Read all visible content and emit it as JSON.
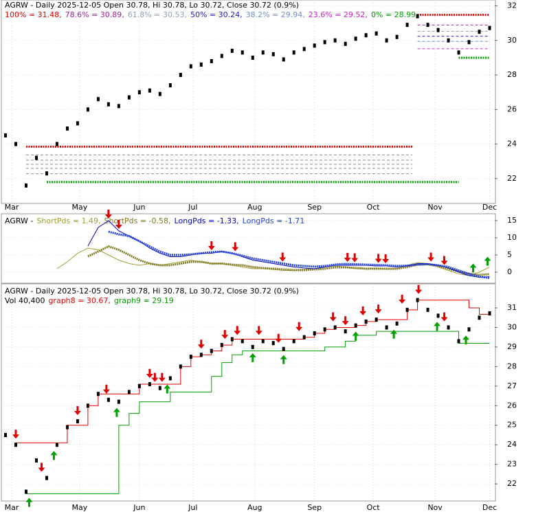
{
  "chart_data": [
    {
      "type": "price",
      "title": "AGRW - Daily 2025-12-05 Open 30.78, Hi 30.78, Lo 30.72, Close 30.72 (0.9%)",
      "xlim": [
        -0.2,
        47.5
      ],
      "xticks": [
        {
          "value": 0.6,
          "label": "Mar"
        },
        {
          "value": 7.2,
          "label": "May"
        },
        {
          "value": 13,
          "label": "Jun"
        },
        {
          "value": 18.2,
          "label": "Jul"
        },
        {
          "value": 24.2,
          "label": "Aug"
        },
        {
          "value": 30,
          "label": "Sep"
        },
        {
          "value": 35.7,
          "label": "Oct"
        },
        {
          "value": 41.7,
          "label": "Nov"
        },
        {
          "value": 47,
          "label": "Dec"
        }
      ],
      "ylim": [
        20.8,
        32.26
      ],
      "yticks": [
        22,
        24,
        26,
        28,
        30,
        32
      ],
      "grid": true,
      "color": "#000000",
      "values": [
        24.5,
        24.0,
        21.6,
        23.2,
        22.3,
        24.0,
        24.9,
        25.2,
        26.0,
        26.6,
        26.3,
        26.2,
        26.7,
        27.0,
        27.1,
        26.9,
        27.4,
        28.0,
        28.5,
        28.6,
        28.8,
        29.1,
        29.4,
        29.3,
        29.0,
        29.3,
        29.2,
        28.9,
        29.3,
        29.5,
        29.7,
        29.9,
        30.0,
        29.8,
        30.1,
        30.3,
        30.4,
        30.0,
        30.2,
        30.9,
        31.4,
        30.9,
        30.6,
        30.0,
        29.3,
        29.9,
        30.5,
        30.72
      ],
      "fib_levels": [
        {
          "value": 31.48,
          "label": "100% = 31.48,",
          "color": "#e00000"
        },
        {
          "value": 30.89,
          "label": "78.6% = 30.89,",
          "color": "#a020a0"
        },
        {
          "value": 30.53,
          "label": "61.8% = 30.53,",
          "color": "#8fa0b8"
        },
        {
          "value": 30.24,
          "label": "50% = 30.24,",
          "color": "#2020c0"
        },
        {
          "value": 29.94,
          "label": "38.2% = 29.94,",
          "color": "#7090d0"
        },
        {
          "value": 29.52,
          "label": "23.6% = 29.52,",
          "color": "#d020d0"
        },
        {
          "value": 28.99,
          "label": "0% = 28.99",
          "color": "#00a000"
        }
      ],
      "prior_fib_levels": [
        23.85,
        23.37,
        23.07,
        22.83,
        22.59,
        22.28,
        21.8
      ]
    },
    {
      "type": "oscillator",
      "title": "AGRW -",
      "xlim": [
        -0.2,
        47.5
      ],
      "ylim": [
        -2.8,
        16.6
      ],
      "yticks": [
        0,
        5,
        10,
        15
      ],
      "grid": true,
      "series": [
        {
          "name": "ShortPds",
          "label": "ShortPds = 1.49,",
          "color": "#a0a030",
          "line_style": "solid",
          "values": [
            null,
            null,
            null,
            null,
            null,
            1.0,
            3.0,
            5.5,
            7.0,
            6.5,
            5.0,
            3.5,
            2.5,
            2.0,
            2.5,
            2.0,
            2.5,
            3.0,
            3.5,
            3.0,
            2.5,
            2.5,
            2.0,
            1.5,
            1.0,
            1.0,
            0.8,
            0.5,
            0.5,
            0.8,
            1.0,
            1.5,
            1.8,
            1.5,
            1.0,
            1.0,
            1.2,
            0.8,
            1.0,
            2.0,
            2.8,
            2.5,
            1.5,
            0.5,
            -0.5,
            -1.0,
            0.0,
            1.49
          ]
        },
        {
          "name": "ShortPds",
          "label": "ShortPds = -0.58,",
          "color": "#807820",
          "line_style": "dotted",
          "values": [
            null,
            null,
            null,
            null,
            null,
            null,
            null,
            null,
            4.6,
            6.0,
            7.5,
            6.5,
            5.0,
            3.5,
            2.5,
            2.0,
            2.0,
            2.5,
            3.0,
            3.0,
            2.5,
            2.5,
            2.2,
            2.0,
            1.5,
            1.2,
            1.0,
            0.8,
            0.6,
            0.6,
            0.8,
            1.0,
            1.4,
            1.4,
            1.2,
            1.0,
            1.0,
            1.0,
            1.0,
            1.5,
            2.2,
            2.3,
            1.8,
            1.0,
            0.2,
            -0.5,
            -0.8,
            -0.58
          ]
        },
        {
          "name": "LongPds",
          "label": "LongPds = -1.33,",
          "color": "#0000c0",
          "line_style": "solid",
          "values": [
            null,
            null,
            null,
            null,
            null,
            null,
            null,
            null,
            7.6,
            13.0,
            15.0,
            12.0,
            10.5,
            9.0,
            7.0,
            5.5,
            4.5,
            4.5,
            5.0,
            5.5,
            5.5,
            6.0,
            5.5,
            4.5,
            3.5,
            3.0,
            2.5,
            2.0,
            1.5,
            1.2,
            1.0,
            1.5,
            2.0,
            2.0,
            2.0,
            2.0,
            1.8,
            1.8,
            1.5,
            1.8,
            2.5,
            2.5,
            2.0,
            1.2,
            0.0,
            -1.0,
            -1.5,
            -1.33
          ]
        },
        {
          "name": "LongPds",
          "label": "LongPds = -1.71",
          "color": "#2040e0",
          "line_style": "dotted",
          "values": [
            null,
            null,
            null,
            null,
            null,
            null,
            null,
            null,
            null,
            null,
            11.8,
            11.0,
            10.5,
            9.0,
            7.5,
            6.0,
            5.0,
            5.0,
            5.2,
            5.5,
            5.8,
            6.0,
            5.5,
            4.8,
            4.0,
            3.5,
            3.0,
            2.5,
            2.0,
            1.8,
            1.6,
            1.8,
            2.2,
            2.4,
            2.3,
            2.2,
            2.1,
            2.0,
            1.8,
            1.9,
            2.2,
            2.3,
            2.0,
            1.5,
            0.5,
            -0.5,
            -1.3,
            -1.71
          ]
        }
      ],
      "sell_signals": [
        10,
        11,
        20,
        22.3,
        26.9,
        33.2,
        33.9,
        36.2,
        36.9,
        41.3,
        42.6
      ],
      "buy_signals": [
        45.4,
        46.8
      ]
    },
    {
      "type": "price",
      "title": "AGRW - Daily 2025-12-05 Open 30.78, Hi 30.78, Lo 30.72, Close 30.72 (0.9%)",
      "volume_label": "Vol 40,400",
      "xlim": [
        -0.2,
        47.5
      ],
      "xticks": [
        {
          "value": 0.6,
          "label": "Mar"
        },
        {
          "value": 7.2,
          "label": "May"
        },
        {
          "value": 13,
          "label": "Jun"
        },
        {
          "value": 18.2,
          "label": "Jul"
        },
        {
          "value": 24.2,
          "label": "Aug"
        },
        {
          "value": 30,
          "label": "Sep"
        },
        {
          "value": 35.7,
          "label": "Oct"
        },
        {
          "value": 41.7,
          "label": "Nov"
        },
        {
          "value": 47,
          "label": "Dec"
        }
      ],
      "ylim": [
        21.16,
        32.16
      ],
      "yticks": [
        22,
        23,
        24,
        25,
        26,
        27,
        28,
        29,
        30,
        31
      ],
      "grid": true,
      "color": "#000000",
      "values": [
        24.5,
        24.0,
        21.6,
        23.2,
        22.3,
        24.0,
        24.9,
        25.2,
        26.0,
        26.6,
        26.3,
        26.2,
        26.7,
        27.0,
        27.1,
        26.9,
        27.4,
        28.0,
        28.5,
        28.6,
        28.8,
        29.1,
        29.4,
        29.3,
        29.0,
        29.3,
        29.2,
        28.9,
        29.3,
        29.5,
        29.7,
        29.9,
        30.0,
        29.8,
        30.1,
        30.3,
        30.4,
        30.0,
        30.2,
        30.9,
        31.4,
        30.9,
        30.6,
        30.0,
        29.3,
        29.9,
        30.5,
        30.72
      ],
      "series": [
        {
          "name": "graph8",
          "label": "graph8 = 30.67,",
          "color": "#e00000",
          "values": [
            null,
            24.1,
            24.1,
            24.1,
            24.1,
            24.1,
            25.0,
            25.0,
            26.0,
            26.6,
            26.6,
            26.6,
            26.6,
            27.1,
            27.1,
            27.1,
            27.1,
            28.0,
            28.5,
            28.6,
            28.8,
            29.1,
            29.4,
            29.4,
            29.4,
            29.4,
            29.4,
            29.4,
            29.4,
            29.5,
            29.7,
            29.9,
            30.0,
            30.0,
            30.1,
            30.3,
            30.4,
            30.4,
            30.4,
            30.9,
            31.4,
            31.4,
            31.4,
            31.4,
            31.4,
            31.0,
            30.67,
            30.67
          ]
        },
        {
          "name": "graph9",
          "label": "graph9 = 29.19",
          "color": "#00a000",
          "values": [
            null,
            null,
            21.5,
            21.5,
            21.5,
            21.5,
            21.5,
            21.5,
            21.5,
            21.5,
            21.5,
            25.0,
            25.6,
            26.2,
            26.2,
            26.2,
            26.7,
            26.7,
            26.7,
            26.7,
            27.5,
            28.2,
            28.6,
            28.8,
            28.8,
            28.8,
            28.8,
            28.8,
            28.8,
            28.8,
            28.8,
            29.0,
            29.0,
            29.3,
            29.6,
            29.6,
            29.8,
            29.8,
            29.8,
            29.8,
            29.8,
            29.8,
            29.8,
            29.8,
            29.19,
            29.19,
            29.19,
            29.19
          ]
        }
      ],
      "sell_signals": [
        1,
        3.5,
        7,
        9.8,
        14,
        14.5,
        15.2,
        19,
        21.3,
        22.5,
        24.6,
        26.5,
        28.5,
        31.8,
        33,
        34.7,
        36.2,
        38.5,
        40.1,
        42.6
      ],
      "buy_signals": [
        2.3,
        4.7,
        10.8,
        15.7,
        24,
        27,
        34,
        37.7,
        41.9,
        44.7
      ]
    }
  ]
}
